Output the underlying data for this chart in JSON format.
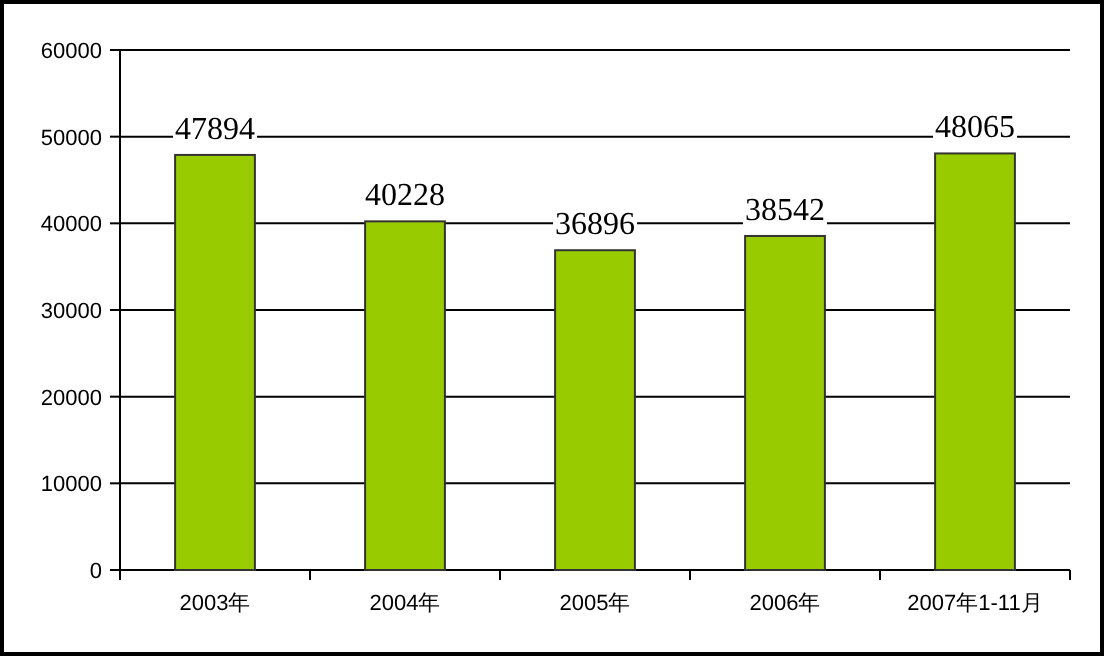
{
  "chart_data": {
    "type": "bar",
    "categories": [
      "2003年",
      "2004年",
      "2005年",
      "2006年",
      "2007年1-11月"
    ],
    "values": [
      47894,
      40228,
      36896,
      38542,
      48065
    ],
    "color": "#99cc00",
    "ylim": [
      0,
      60000
    ],
    "yticks": [
      0,
      10000,
      20000,
      30000,
      40000,
      50000,
      60000
    ],
    "grid": "y",
    "data_labels": true
  }
}
